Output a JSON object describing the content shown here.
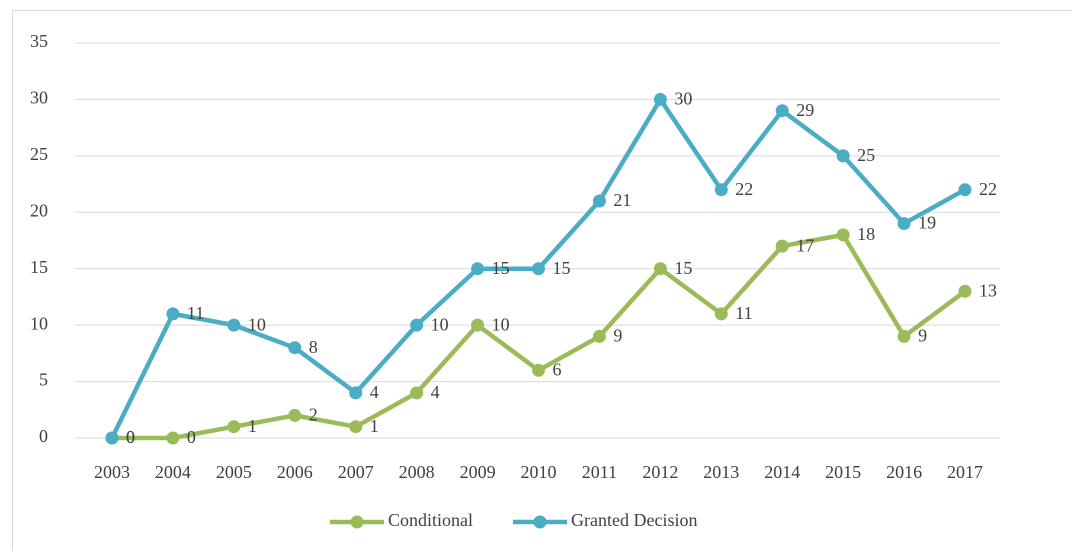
{
  "chart_data": {
    "type": "line",
    "categories": [
      "2003",
      "2004",
      "2005",
      "2006",
      "2007",
      "2008",
      "2009",
      "2010",
      "2011",
      "2012",
      "2013",
      "2014",
      "2015",
      "2016",
      "2017"
    ],
    "series": [
      {
        "name": "Conditional",
        "color": "#9bbb59",
        "values": [
          0,
          0,
          1,
          2,
          1,
          4,
          10,
          6,
          9,
          15,
          11,
          17,
          18,
          9,
          13
        ]
      },
      {
        "name": "Granted Decision",
        "color": "#4bacc6",
        "values": [
          0,
          11,
          10,
          8,
          4,
          10,
          15,
          15,
          21,
          30,
          22,
          29,
          25,
          19,
          22
        ]
      }
    ],
    "ylim": [
      0,
      35
    ],
    "yticks": [
      0,
      5,
      10,
      15,
      20,
      25,
      30,
      35
    ],
    "grid": true,
    "legend": "bottom"
  }
}
